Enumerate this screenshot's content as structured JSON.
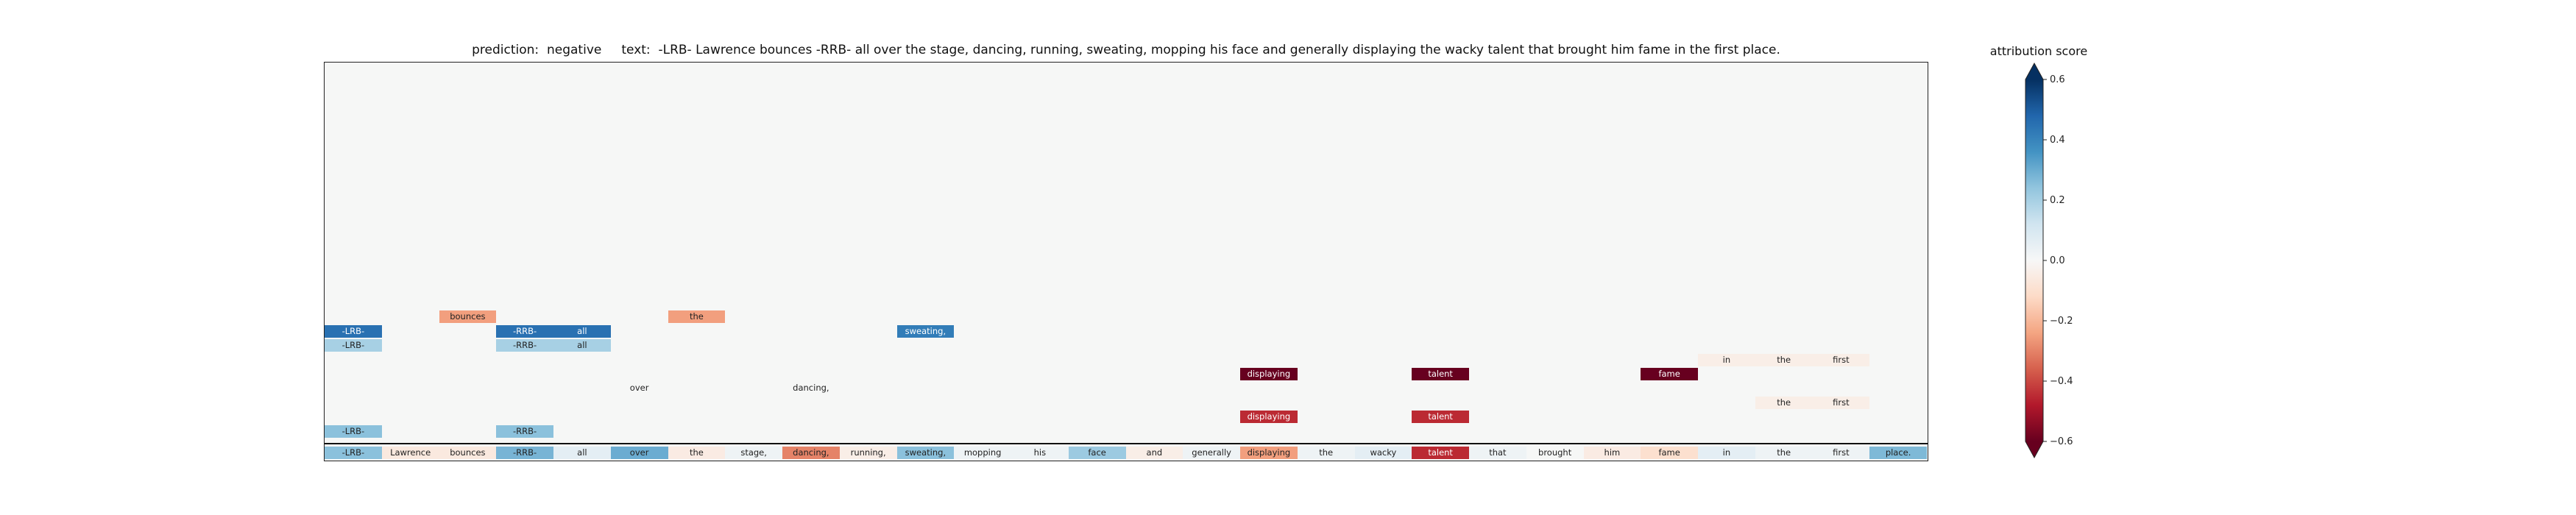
{
  "title": {
    "prediction_label": "prediction:",
    "prediction_value": "negative",
    "text_label": "text:",
    "text_value": "-LRB- Lawrence bounces -RRB- all over the stage, dancing, running, sweating, mopping his face and generally displaying the wacky talent that brought him fame in the first place."
  },
  "colorbar": {
    "title": "attribution score",
    "colormap": "RdBu",
    "min": -0.6,
    "max": 0.6,
    "ticks": [
      "0.6",
      "0.4",
      "0.2",
      "0.0",
      "−0.2",
      "−0.4",
      "−0.6"
    ],
    "tick_values": [
      0.6,
      0.4,
      0.2,
      0.0,
      -0.2,
      -0.4,
      -0.6
    ],
    "extend": "both"
  },
  "chart_data": {
    "type": "heatmap",
    "title": "prediction:  negative     text:  -LRB- Lawrence bounces -RRB- all over the stage, dancing, running, sweating, mopping his face and generally displaying the wacky talent that brought him fame in the first place.",
    "tokens": [
      "-LRB-",
      "Lawrence",
      "bounces",
      "-RRB-",
      "all",
      "over",
      "the",
      "stage,",
      "dancing,",
      "running,",
      "sweating,",
      "mopping",
      "his",
      "face",
      "and",
      "generally",
      "displaying",
      "the",
      "wacky",
      "talent",
      "that",
      "brought",
      "him",
      "fame",
      "in",
      "the",
      "first",
      "place."
    ],
    "base_row_scores": [
      0.25,
      -0.06,
      -0.06,
      0.28,
      0.06,
      0.3,
      -0.05,
      0.03,
      -0.3,
      -0.04,
      0.25,
      0.03,
      0.03,
      0.22,
      -0.04,
      0.03,
      -0.25,
      0.03,
      0.06,
      -0.45,
      0.03,
      0.0,
      -0.05,
      -0.1,
      0.06,
      0.03,
      0.03,
      0.27
    ],
    "upper_rows": [
      {
        "row": 1,
        "cells": [
          {
            "token": 2,
            "label": "bounces",
            "score": -0.25
          },
          {
            "token": 6,
            "label": "the",
            "score": -0.25
          }
        ]
      },
      {
        "row": 2,
        "cells": [
          {
            "token": 0,
            "label": "-LRB-",
            "score": 0.45
          },
          {
            "token": 3,
            "label": "-RRB-",
            "score": 0.45
          },
          {
            "token": 4,
            "label": "all",
            "score": 0.45
          },
          {
            "token": 10,
            "label": "sweating,",
            "score": 0.42
          }
        ]
      },
      {
        "row": 3,
        "cells": [
          {
            "token": 0,
            "label": "-LRB-",
            "score": 0.2
          },
          {
            "token": 3,
            "label": "-RRB-",
            "score": 0.2
          },
          {
            "token": 4,
            "label": "all",
            "score": 0.2
          }
        ]
      },
      {
        "row": 4,
        "cells": [
          {
            "token": 24,
            "label": "in",
            "score": -0.04
          },
          {
            "token": 25,
            "label": "the",
            "score": -0.04
          },
          {
            "token": 26,
            "label": "first",
            "score": -0.04
          }
        ]
      },
      {
        "row": 5,
        "cells": [
          {
            "token": 16,
            "label": "displaying",
            "score": -0.6
          },
          {
            "token": 19,
            "label": "talent",
            "score": -0.6
          },
          {
            "token": 23,
            "label": "fame",
            "score": -0.6
          }
        ]
      },
      {
        "row": 6,
        "cells": [
          {
            "token": 5,
            "label": "over",
            "score": 0.0
          },
          {
            "token": 8,
            "label": "dancing,",
            "score": 0.0
          }
        ]
      },
      {
        "row": 7,
        "cells": [
          {
            "token": 25,
            "label": "the",
            "score": -0.04
          },
          {
            "token": 26,
            "label": "first",
            "score": -0.04
          }
        ]
      },
      {
        "row": 8,
        "cells": [
          {
            "token": 16,
            "label": "displaying",
            "score": -0.45
          },
          {
            "token": 19,
            "label": "talent",
            "score": -0.45
          }
        ]
      },
      {
        "row": 9,
        "cells": [
          {
            "token": 0,
            "label": "-LRB-",
            "score": 0.25
          },
          {
            "token": 3,
            "label": "-RRB-",
            "score": 0.25
          }
        ]
      }
    ]
  }
}
